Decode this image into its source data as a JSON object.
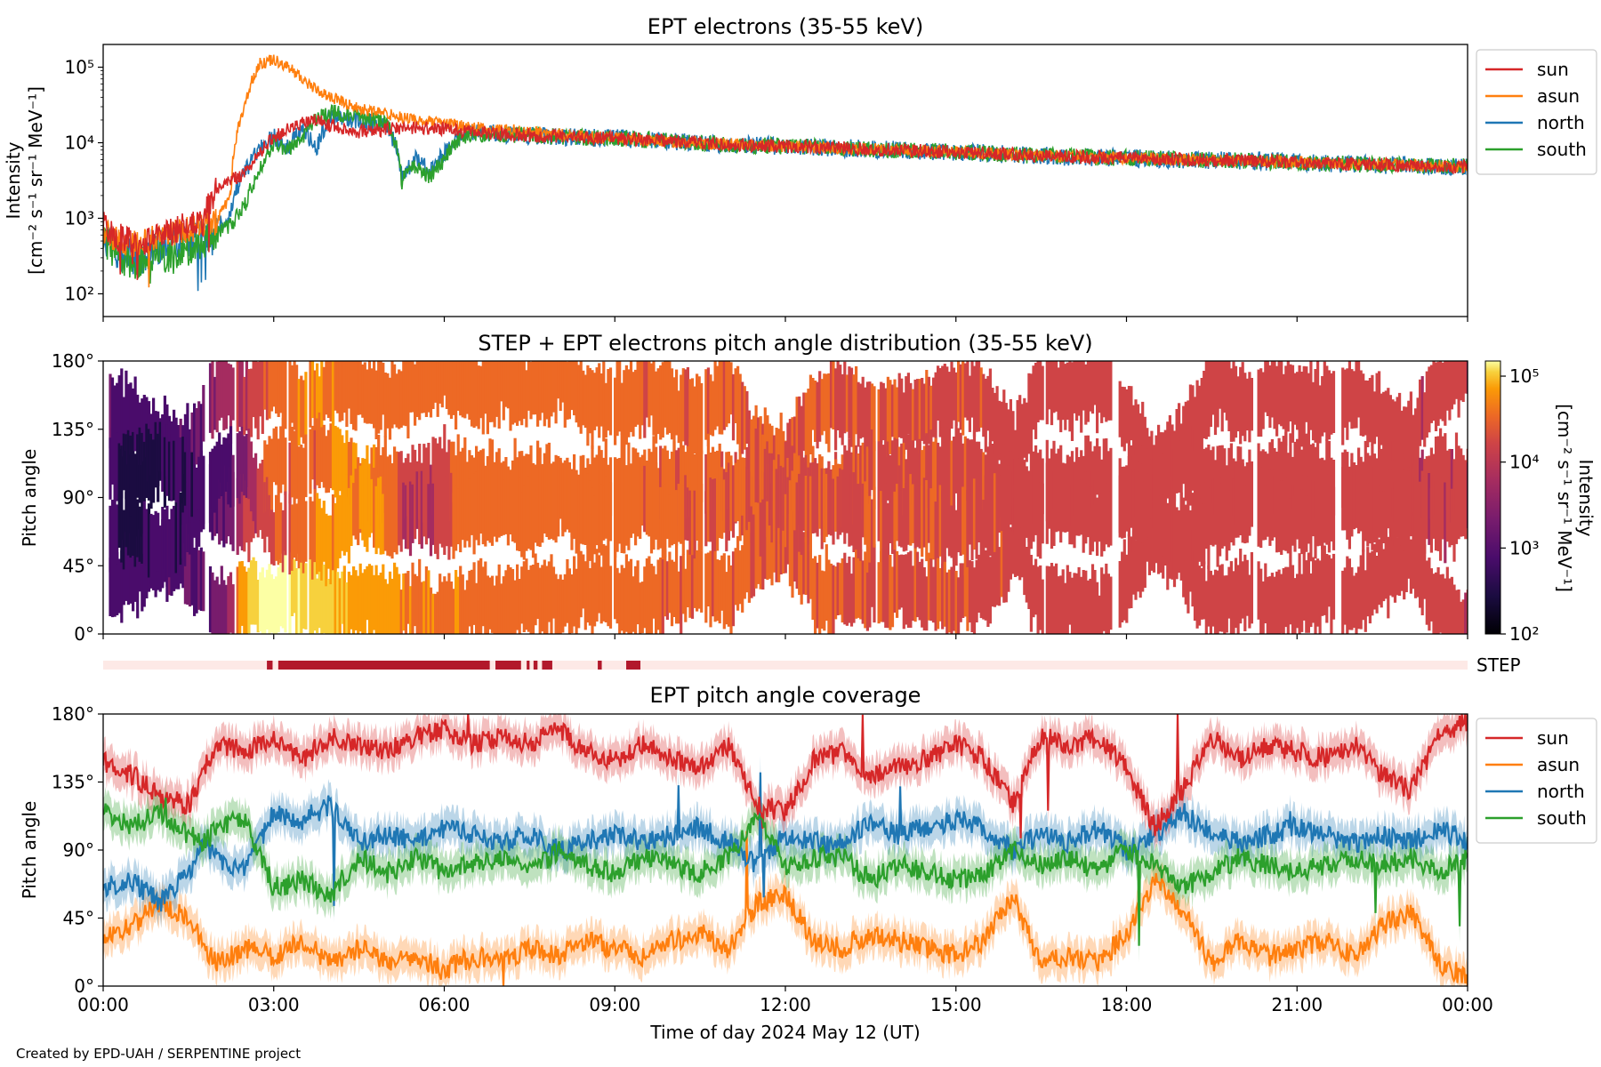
{
  "chart_data": [
    {
      "type": "line",
      "title": "EPT electrons (35-55 keV)",
      "ylabel_line1": "Intensity",
      "ylabel_line2": "[cm⁻² s⁻¹ sr⁻¹ MeV⁻¹]",
      "yscale": "log",
      "ylim": [
        50,
        200000
      ],
      "yticks": [
        "10²",
        "10³",
        "10⁴",
        "10⁵"
      ],
      "yticks_values": [
        100,
        1000,
        10000,
        100000
      ],
      "xlim_hours": [
        0,
        24
      ],
      "legend_position": "outside-right-top",
      "series": [
        {
          "name": "sun",
          "color": "#d62728",
          "hours": [
            0,
            0.25,
            0.5,
            0.75,
            1.0,
            1.25,
            1.5,
            1.75,
            2.0,
            2.25,
            2.5,
            2.75,
            3.0,
            3.25,
            3.5,
            3.75,
            4.0,
            4.5,
            5.0,
            5.5,
            6.0,
            6.5,
            7.0,
            7.5,
            8.0,
            9.0,
            10.0,
            11.0,
            12.0,
            13.0,
            14.0,
            15.0,
            16.0,
            17.0,
            18.0,
            19.0,
            20.0,
            21.0,
            22.0,
            23.0,
            24.0
          ],
          "values": [
            800,
            550,
            500,
            450,
            700,
            650,
            800,
            900,
            2500,
            3200,
            4000,
            7000,
            12000,
            15000,
            18000,
            20000,
            17000,
            14000,
            15000,
            16000,
            15000,
            14000,
            13000,
            12500,
            12000,
            11500,
            10500,
            9500,
            9000,
            8500,
            8000,
            7500,
            7000,
            6500,
            6300,
            6000,
            5800,
            5500,
            5200,
            5000,
            4800
          ]
        },
        {
          "name": "asun",
          "color": "#ff7f0e",
          "hours": [
            0,
            0.25,
            0.5,
            0.75,
            1.0,
            1.25,
            1.5,
            1.75,
            2.0,
            2.25,
            2.5,
            2.75,
            3.0,
            3.25,
            3.5,
            3.75,
            4.0,
            4.5,
            5.0,
            5.5,
            6.0,
            6.5,
            7.0,
            7.5,
            8.0,
            9.0,
            10.0,
            11.0,
            12.0,
            13.0,
            14.0,
            15.0,
            16.0,
            17.0,
            18.0,
            19.0,
            20.0,
            21.0,
            22.0,
            23.0,
            24.0
          ],
          "values": [
            700,
            500,
            450,
            500,
            600,
            650,
            700,
            800,
            900,
            2000,
            30000,
            110000,
            130000,
            100000,
            70000,
            50000,
            40000,
            28000,
            24000,
            20000,
            18000,
            16000,
            15000,
            14000,
            13000,
            11500,
            10500,
            9500,
            9000,
            8500,
            8000,
            7500,
            7000,
            6500,
            6300,
            6000,
            5800,
            5500,
            5200,
            5000,
            4800
          ]
        },
        {
          "name": "north",
          "color": "#1f77b4",
          "hours": [
            0,
            0.25,
            0.5,
            0.75,
            1.0,
            1.25,
            1.5,
            1.75,
            2.0,
            2.25,
            2.5,
            2.75,
            3.0,
            3.25,
            3.5,
            3.75,
            4.0,
            4.5,
            5.0,
            5.25,
            5.5,
            5.75,
            6.0,
            6.25,
            6.5,
            7.0,
            7.5,
            8.0,
            9.0,
            10.0,
            11.0,
            12.0,
            13.0,
            14.0,
            15.0,
            16.0,
            17.0,
            18.0,
            19.0,
            20.0,
            21.0,
            22.0,
            23.0,
            24.0
          ],
          "values": [
            600,
            350,
            300,
            350,
            450,
            400,
            500,
            600,
            700,
            1200,
            4000,
            8000,
            12000,
            9000,
            15000,
            8000,
            22000,
            20000,
            16000,
            3500,
            6000,
            4000,
            7000,
            12000,
            14000,
            13000,
            12500,
            12000,
            11500,
            10500,
            9500,
            9000,
            8500,
            8000,
            7500,
            7000,
            6500,
            6300,
            6000,
            5800,
            5500,
            5200,
            5000,
            4800
          ]
        },
        {
          "name": "south",
          "color": "#2ca02c",
          "hours": [
            0,
            0.25,
            0.5,
            0.75,
            1.0,
            1.25,
            1.5,
            1.75,
            2.0,
            2.25,
            2.5,
            2.75,
            3.0,
            3.25,
            3.5,
            3.75,
            4.0,
            4.5,
            5.0,
            5.25,
            5.5,
            5.75,
            6.0,
            6.25,
            6.5,
            7.0,
            7.5,
            8.0,
            9.0,
            10.0,
            11.0,
            12.0,
            13.0,
            14.0,
            15.0,
            16.0,
            17.0,
            18.0,
            19.0,
            20.0,
            21.0,
            22.0,
            23.0,
            24.0
          ],
          "values": [
            500,
            300,
            250,
            300,
            350,
            300,
            400,
            500,
            600,
            800,
            1500,
            4000,
            10000,
            8000,
            12000,
            20000,
            25000,
            22000,
            18000,
            3000,
            5000,
            3500,
            6000,
            11000,
            13000,
            13000,
            12500,
            12000,
            11500,
            10500,
            9500,
            9000,
            8500,
            8000,
            7500,
            7000,
            6500,
            6300,
            6000,
            5800,
            5500,
            5200,
            5000,
            4800
          ]
        }
      ]
    },
    {
      "type": "heatmap",
      "title": "STEP + EPT electrons pitch angle distribution (35-55 keV)",
      "ylabel": "Pitch angle",
      "ylim_deg": [
        0,
        180
      ],
      "yticks": [
        "0°",
        "45°",
        "90°",
        "135°",
        "180°"
      ],
      "yticks_values": [
        0,
        45,
        90,
        135,
        180
      ],
      "xlim_hours": [
        0,
        24
      ],
      "colormap": "inferno",
      "color_scale": "log",
      "clim": [
        100,
        150000
      ],
      "colorbar_label_line1": "Intensity",
      "colorbar_label_line2": "[cm⁻² s⁻¹ sr⁻¹ MeV⁻¹]",
      "colorbar_ticks": [
        "10²",
        "10³",
        "10⁴",
        "10⁵"
      ],
      "colorbar_ticks_values": [
        100,
        1000,
        10000,
        100000
      ]
    },
    {
      "type": "bar",
      "label": "STEP",
      "color": "#b2182b",
      "background_color": "#fde9e6",
      "xlim_hours": [
        0,
        24
      ],
      "intervals_hours": [
        [
          2.88,
          2.98
        ],
        [
          3.08,
          6.8
        ],
        [
          6.9,
          7.35
        ],
        [
          7.45,
          7.5
        ],
        [
          7.57,
          7.64
        ],
        [
          7.72,
          7.9
        ],
        [
          8.7,
          8.77
        ],
        [
          9.2,
          9.45
        ]
      ]
    },
    {
      "type": "line",
      "title": "EPT pitch angle coverage",
      "ylabel": "Pitch angle",
      "ylim_deg": [
        0,
        180
      ],
      "yticks": [
        "0°",
        "45°",
        "90°",
        "135°",
        "180°"
      ],
      "yticks_values": [
        0,
        45,
        90,
        135,
        180
      ],
      "xlim_hours": [
        0,
        24
      ],
      "xticks": [
        "00:00",
        "03:00",
        "06:00",
        "09:00",
        "12:00",
        "15:00",
        "18:00",
        "21:00",
        "00:00"
      ],
      "xticks_values": [
        0,
        3,
        6,
        9,
        12,
        15,
        18,
        21,
        24
      ],
      "xlabel": "Time of day 2024 May 12 (UT)",
      "legend_position": "outside-right-top",
      "series": [
        {
          "name": "sun",
          "color": "#d62728",
          "hours": [
            0,
            0.5,
            1.0,
            1.5,
            1.8,
            2.0,
            2.5,
            3.0,
            3.5,
            4.0,
            4.5,
            5.0,
            5.5,
            6.0,
            6.5,
            7.0,
            7.5,
            8.0,
            8.5,
            9.0,
            9.5,
            10.0,
            10.5,
            11.0,
            11.5,
            12.0,
            12.5,
            13.0,
            13.5,
            14.0,
            14.5,
            15.0,
            15.5,
            16.0,
            16.5,
            17.0,
            17.5,
            18.0,
            18.5,
            19.0,
            19.5,
            20.0,
            20.5,
            21.0,
            21.5,
            22.0,
            22.5,
            23.0,
            23.5,
            24.0
          ],
          "values": [
            148,
            140,
            125,
            120,
            145,
            160,
            155,
            165,
            150,
            165,
            160,
            155,
            165,
            170,
            160,
            165,
            160,
            170,
            155,
            150,
            160,
            150,
            145,
            160,
            120,
            115,
            150,
            155,
            140,
            145,
            150,
            160,
            150,
            120,
            165,
            160,
            165,
            145,
            105,
            130,
            165,
            150,
            160,
            155,
            150,
            160,
            140,
            130,
            165,
            175
          ]
        },
        {
          "name": "asun",
          "color": "#ff7f0e",
          "hours": [
            0,
            0.5,
            1.0,
            1.5,
            1.8,
            2.0,
            2.5,
            3.0,
            3.5,
            4.0,
            4.5,
            5.0,
            5.5,
            6.0,
            6.5,
            7.0,
            7.5,
            8.0,
            8.5,
            9.0,
            9.5,
            10.0,
            10.5,
            11.0,
            11.5,
            12.0,
            12.5,
            13.0,
            13.5,
            14.0,
            14.5,
            15.0,
            15.5,
            16.0,
            16.5,
            17.0,
            17.5,
            18.0,
            18.5,
            19.0,
            19.5,
            20.0,
            20.5,
            21.0,
            21.5,
            22.0,
            22.5,
            23.0,
            23.5,
            24.0
          ],
          "values": [
            30,
            40,
            55,
            45,
            25,
            15,
            25,
            20,
            30,
            15,
            25,
            15,
            20,
            10,
            20,
            15,
            25,
            20,
            30,
            25,
            20,
            30,
            35,
            25,
            55,
            60,
            30,
            25,
            35,
            30,
            25,
            20,
            30,
            60,
            15,
            20,
            15,
            35,
            70,
            50,
            15,
            30,
            20,
            25,
            30,
            20,
            40,
            50,
            15,
            5
          ]
        },
        {
          "name": "north",
          "color": "#1f77b4",
          "hours": [
            0,
            0.5,
            1.0,
            1.5,
            1.8,
            2.0,
            2.5,
            3.0,
            3.5,
            4.0,
            4.5,
            5.0,
            5.5,
            6.0,
            6.5,
            7.0,
            7.5,
            8.0,
            8.5,
            9.0,
            9.5,
            10.0,
            10.5,
            11.0,
            11.5,
            12.0,
            12.5,
            13.0,
            13.5,
            14.0,
            14.5,
            15.0,
            15.5,
            16.0,
            16.5,
            17.0,
            17.5,
            18.0,
            18.5,
            19.0,
            19.5,
            20.0,
            20.5,
            21.0,
            21.5,
            22.0,
            22.5,
            23.0,
            23.5,
            24.0
          ],
          "values": [
            65,
            70,
            55,
            75,
            95,
            85,
            75,
            115,
            110,
            120,
            95,
            100,
            95,
            105,
            100,
            95,
            100,
            90,
            95,
            100,
            95,
            100,
            105,
            95,
            80,
            100,
            95,
            95,
            110,
            100,
            105,
            110,
            105,
            90,
            100,
            95,
            105,
            90,
            100,
            115,
            100,
            95,
            100,
            105,
            100,
            95,
            100,
            95,
            105,
            95
          ]
        },
        {
          "name": "south",
          "color": "#2ca02c",
          "hours": [
            0,
            0.5,
            1.0,
            1.5,
            1.8,
            2.0,
            2.5,
            3.0,
            3.5,
            4.0,
            4.5,
            5.0,
            5.5,
            6.0,
            6.5,
            7.0,
            7.5,
            8.0,
            8.5,
            9.0,
            9.5,
            10.0,
            10.5,
            11.0,
            11.5,
            12.0,
            12.5,
            13.0,
            13.5,
            14.0,
            14.5,
            15.0,
            15.5,
            16.0,
            16.5,
            17.0,
            17.5,
            18.0,
            18.5,
            19.0,
            19.5,
            20.0,
            20.5,
            21.0,
            21.5,
            22.0,
            22.5,
            23.0,
            23.5,
            24.0
          ],
          "values": [
            115,
            105,
            115,
            100,
            95,
            105,
            110,
            65,
            70,
            60,
            85,
            75,
            85,
            75,
            80,
            85,
            75,
            90,
            80,
            75,
            85,
            80,
            75,
            85,
            110,
            80,
            85,
            85,
            70,
            80,
            75,
            70,
            75,
            90,
            80,
            85,
            75,
            90,
            80,
            65,
            75,
            85,
            80,
            75,
            80,
            85,
            80,
            85,
            75,
            85
          ]
        }
      ]
    }
  ],
  "footer": {
    "credit": "Created by EPD-UAH / SERPENTINE project"
  }
}
